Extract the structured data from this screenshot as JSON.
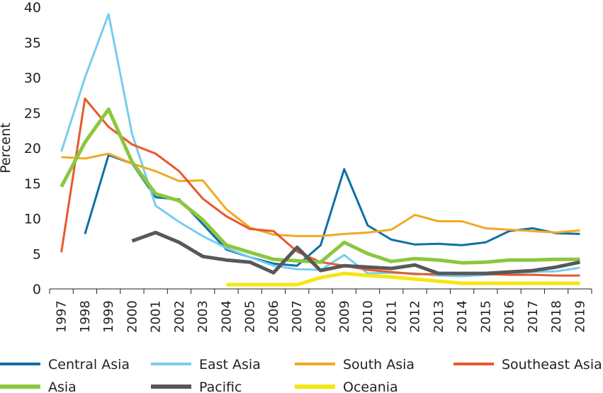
{
  "chart_data": {
    "type": "line",
    "title": "",
    "xlabel": "",
    "ylabel": "Percent",
    "ylim": [
      0,
      40
    ],
    "yticks": [
      0,
      5,
      10,
      15,
      20,
      25,
      30,
      35,
      40
    ],
    "grid": false,
    "legend_position": "bottom",
    "categories": [
      "1997",
      "1998",
      "1999",
      "2000",
      "2001",
      "2002",
      "2003",
      "2004",
      "2005",
      "2006",
      "2007",
      "2008",
      "2009",
      "2010",
      "2011",
      "2012",
      "2013",
      "2014",
      "2015",
      "2016",
      "2017",
      "2018",
      "2019"
    ],
    "series": [
      {
        "name": "Central Asia",
        "color": "#0f6fa6",
        "values": [
          null,
          7.8,
          19.0,
          17.8,
          13.0,
          12.7,
          9.2,
          5.6,
          4.5,
          3.6,
          3.3,
          6.2,
          17.0,
          9.0,
          7.0,
          6.3,
          6.4,
          6.2,
          6.6,
          8.2,
          8.6,
          7.9,
          7.8
        ]
      },
      {
        "name": "East Asia",
        "color": "#77cdf0",
        "values": [
          19.5,
          30.0,
          39.0,
          22.0,
          11.8,
          9.5,
          7.5,
          5.8,
          4.5,
          3.3,
          2.8,
          2.7,
          4.8,
          2.2,
          2.3,
          2.2,
          1.9,
          1.8,
          2.0,
          2.2,
          2.4,
          2.5,
          3.0
        ]
      },
      {
        "name": "South Asia",
        "color": "#f2a922",
        "values": [
          18.7,
          18.5,
          19.2,
          17.8,
          16.7,
          15.3,
          15.4,
          11.3,
          8.7,
          7.7,
          7.5,
          7.5,
          7.8,
          8.0,
          8.4,
          10.5,
          9.6,
          9.6,
          8.6,
          8.4,
          8.2,
          8.0,
          8.3
        ]
      },
      {
        "name": "Southeast Asia",
        "color": "#e8582c",
        "values": [
          5.2,
          27.0,
          23.0,
          20.5,
          19.2,
          16.7,
          12.8,
          10.3,
          8.5,
          8.2,
          5.3,
          3.8,
          3.3,
          2.7,
          2.4,
          2.1,
          2.1,
          2.1,
          2.1,
          2.0,
          2.0,
          1.9,
          1.9
        ]
      },
      {
        "name": "Asia",
        "color": "#8cc63e",
        "values": [
          14.5,
          20.8,
          25.5,
          18.0,
          13.5,
          12.5,
          9.8,
          6.2,
          5.2,
          4.2,
          4.0,
          3.8,
          6.6,
          5.0,
          3.9,
          4.3,
          4.1,
          3.7,
          3.8,
          4.1,
          4.1,
          4.2,
          4.2
        ]
      },
      {
        "name": "Pacific",
        "color": "#585858",
        "values": [
          null,
          null,
          null,
          6.8,
          8.0,
          6.6,
          4.6,
          4.1,
          3.8,
          2.3,
          5.9,
          2.6,
          3.3,
          3.1,
          2.9,
          3.4,
          2.2,
          2.2,
          2.2,
          2.4,
          2.6,
          3.1,
          3.8
        ]
      },
      {
        "name": "Oceania",
        "color": "#f5e612",
        "values": [
          null,
          null,
          null,
          null,
          null,
          null,
          null,
          0.6,
          0.6,
          0.6,
          0.6,
          1.6,
          2.2,
          1.9,
          1.7,
          1.4,
          1.1,
          0.8,
          0.8,
          0.8,
          0.8,
          0.8,
          0.8
        ]
      }
    ]
  }
}
